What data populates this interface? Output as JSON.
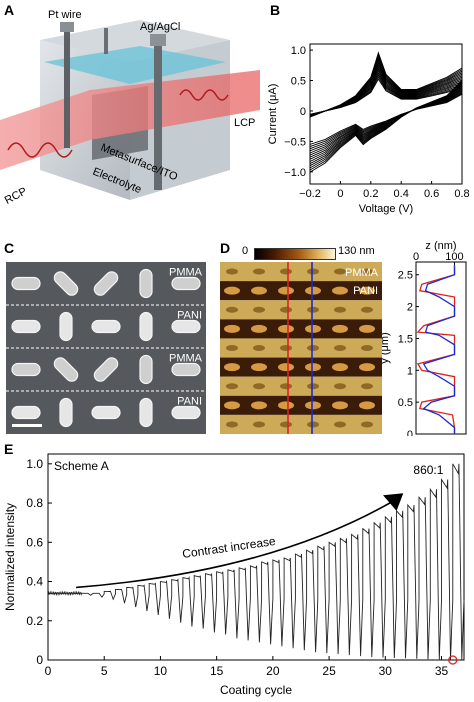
{
  "panels": {
    "A": {
      "letter": "A",
      "labels": {
        "pt_wire": "Pt wire",
        "ag_agcl": "Ag/AgCl",
        "lcp": "LCP",
        "rcp": "RCP",
        "metasurface": "Metasurface/ITO",
        "electrolyte": "Electrolyte"
      }
    },
    "B": {
      "letter": "B"
    },
    "C": {
      "letter": "C",
      "row_labels": [
        "PMMA",
        "PANI",
        "PMMA",
        "PANI"
      ]
    },
    "D": {
      "letter": "D",
      "colorbar_min": "0",
      "colorbar_max": "130 nm",
      "row_labels": [
        "PMMA",
        "PANI"
      ]
    },
    "E": {
      "letter": "E",
      "annotation_scheme": "Scheme A",
      "annotation_ratio": "860:1",
      "annotation_arrow": "Contrast increase"
    }
  },
  "chart_data": [
    {
      "panel": "B",
      "type": "line",
      "xlabel": "Voltage (V)",
      "ylabel": "Current (μA)",
      "xlim": [
        -0.2,
        0.8
      ],
      "ylim": [
        -1.2,
        1.1
      ],
      "xticks": [
        "−0.2",
        "0",
        "0.2",
        "0.4",
        "0.6",
        "0.8"
      ],
      "yticks": [
        "1.0",
        "0.5",
        "0",
        "−0.5",
        "−1.0"
      ],
      "ytick_values": [
        1.0,
        0.5,
        0,
        -0.5,
        -1.0
      ],
      "xtick_values": [
        -0.2,
        0,
        0.2,
        0.4,
        0.6,
        0.8
      ],
      "anodic_peak": {
        "x": 0.25,
        "y": 0.95
      },
      "cathodic_peak": {
        "x": 0.15,
        "y": -0.55
      },
      "upper_branch": {
        "x": [
          -0.2,
          0.0,
          0.1,
          0.2,
          0.25,
          0.3,
          0.4,
          0.5,
          0.6,
          0.7,
          0.8
        ],
        "y": [
          -0.1,
          0.1,
          0.25,
          0.55,
          0.95,
          0.6,
          0.35,
          0.35,
          0.45,
          0.55,
          0.7
        ]
      },
      "lower_branch": {
        "x": [
          0.8,
          0.7,
          0.6,
          0.5,
          0.4,
          0.3,
          0.2,
          0.15,
          0.1,
          0.0,
          -0.1,
          -0.2
        ],
        "y": [
          0.5,
          0.25,
          0.15,
          0.05,
          -0.1,
          -0.3,
          -0.45,
          -0.55,
          -0.4,
          -0.6,
          -0.85,
          -1.0
        ]
      }
    },
    {
      "panel": "D-profile",
      "type": "line",
      "xlabel": "z (nm)",
      "ylabel": "y (μm)",
      "xlim": [
        0,
        130
      ],
      "ylim": [
        0,
        2.7
      ],
      "xticks": [
        "0",
        "100"
      ],
      "xtick_values": [
        0,
        100
      ],
      "yticks": [
        "2.5",
        "2",
        "1.5",
        "1",
        "0.5",
        "0"
      ],
      "ytick_values": [
        2.5,
        2,
        1.5,
        1,
        0.5,
        0
      ],
      "series": [
        {
          "color": "#e02020",
          "y": [
            0.0,
            0.1,
            0.3,
            0.4,
            0.5,
            0.6,
            0.75,
            0.9,
            1.0,
            1.1,
            1.25,
            1.4,
            1.55,
            1.6,
            1.7,
            1.85,
            2.0,
            2.15,
            2.25,
            2.35,
            2.5,
            2.65
          ],
          "z": [
            100,
            100,
            95,
            10,
            15,
            100,
            100,
            100,
            15,
            5,
            100,
            100,
            100,
            5,
            20,
            100,
            100,
            100,
            10,
            15,
            100,
            100
          ]
        },
        {
          "color": "#1c2bd0",
          "y": [
            0.0,
            0.1,
            0.3,
            0.4,
            0.5,
            0.6,
            0.75,
            0.9,
            1.0,
            1.1,
            1.25,
            1.4,
            1.55,
            1.6,
            1.7,
            1.85,
            2.0,
            2.15,
            2.25,
            2.35,
            2.5,
            2.65
          ],
          "z": [
            100,
            100,
            60,
            20,
            40,
            100,
            100,
            60,
            30,
            20,
            100,
            100,
            60,
            25,
            30,
            100,
            100,
            60,
            25,
            30,
            100,
            100
          ]
        }
      ]
    },
    {
      "panel": "E",
      "type": "line",
      "xlabel": "Coating cycle",
      "ylabel": "Normalized intensity",
      "xlim": [
        0,
        37
      ],
      "ylim": [
        0,
        1.05
      ],
      "xticks": [
        "0",
        "5",
        "10",
        "15",
        "20",
        "25",
        "30",
        "35"
      ],
      "xtick_values": [
        0,
        5,
        10,
        15,
        20,
        25,
        30,
        35
      ],
      "yticks": [
        "1.0",
        "0.8",
        "0.6",
        "0.4",
        "0.2",
        "0"
      ],
      "ytick_values": [
        1.0,
        0.8,
        0.6,
        0.4,
        0.2,
        0
      ],
      "baseline": 0.34,
      "cycles": [
        3,
        4,
        5,
        6,
        7,
        8,
        9,
        10,
        11,
        12,
        13,
        14,
        15,
        16,
        17,
        18,
        19,
        20,
        21,
        22,
        23,
        24,
        25,
        26,
        27,
        28,
        29,
        30,
        31,
        32,
        33,
        34,
        35,
        36
      ],
      "peaks": [
        0.34,
        0.34,
        0.35,
        0.36,
        0.37,
        0.38,
        0.39,
        0.4,
        0.41,
        0.42,
        0.43,
        0.44,
        0.45,
        0.46,
        0.47,
        0.48,
        0.5,
        0.51,
        0.52,
        0.54,
        0.56,
        0.58,
        0.6,
        0.62,
        0.64,
        0.67,
        0.7,
        0.73,
        0.76,
        0.79,
        0.83,
        0.87,
        0.92,
        1.0
      ],
      "troughs": [
        0.33,
        0.32,
        0.31,
        0.29,
        0.27,
        0.25,
        0.23,
        0.21,
        0.19,
        0.17,
        0.16,
        0.14,
        0.13,
        0.11,
        0.1,
        0.09,
        0.08,
        0.07,
        0.06,
        0.05,
        0.04,
        0.035,
        0.03,
        0.025,
        0.02,
        0.015,
        0.012,
        0.01,
        0.008,
        0.006,
        0.004,
        0.003,
        0.002,
        0.001
      ],
      "marker": {
        "x": 36,
        "y": 0.0,
        "color": "#e02020"
      }
    }
  ]
}
